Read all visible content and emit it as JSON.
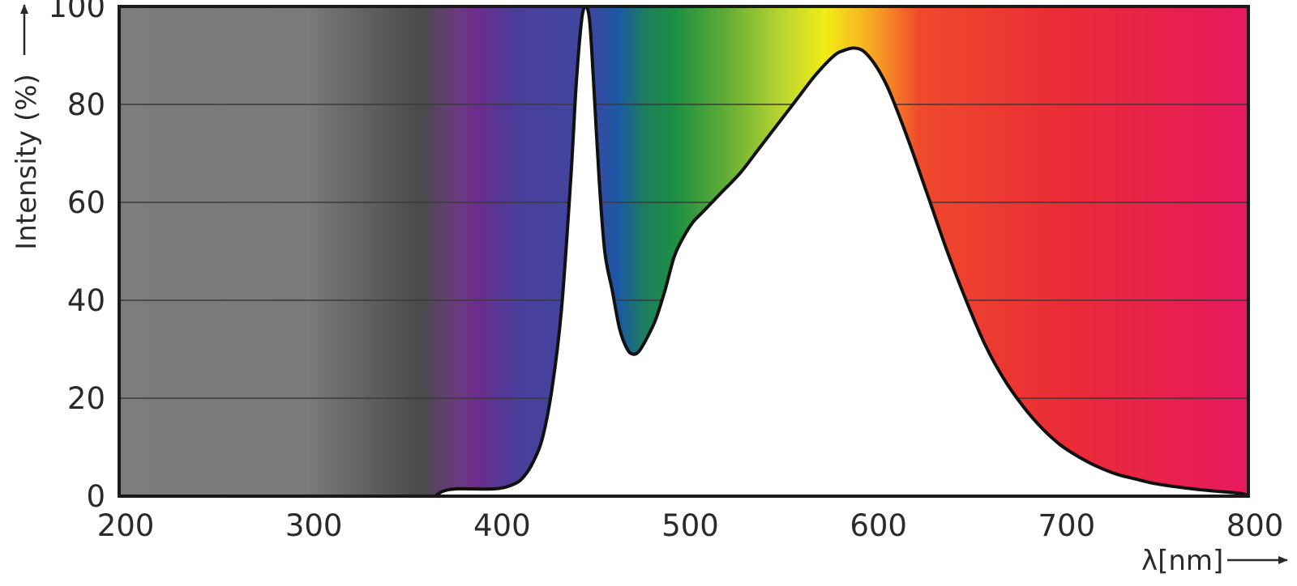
{
  "chart_data": {
    "type": "area",
    "title": "",
    "xlabel": "λ[nm]",
    "ylabel": "Intensity (%)",
    "xlim": [
      200,
      800
    ],
    "ylim": [
      0,
      100
    ],
    "grid": true,
    "x_ticks": [
      "200",
      "300",
      "400",
      "500",
      "600",
      "700",
      "800"
    ],
    "y_ticks": [
      "0",
      "20",
      "40",
      "60",
      "80",
      "100"
    ],
    "background": "visible spectrum gradient (grey UV region → violet → blue → green → yellow → orange → red)",
    "spectrum_colors": [
      {
        "nm": 200,
        "color": "#7d7d7d"
      },
      {
        "nm": 300,
        "color": "#7a7a7a"
      },
      {
        "nm": 360,
        "color": "#4a4a4a"
      },
      {
        "nm": 380,
        "color": "#6b3a80"
      },
      {
        "nm": 390,
        "color": "#6c2c8c"
      },
      {
        "nm": 410,
        "color": "#4a3e9a"
      },
      {
        "nm": 450,
        "color": "#3f47a0"
      },
      {
        "nm": 465,
        "color": "#1b58a6"
      },
      {
        "nm": 480,
        "color": "#1e7f5c"
      },
      {
        "nm": 495,
        "color": "#1c8f45"
      },
      {
        "nm": 520,
        "color": "#5aaa36"
      },
      {
        "nm": 550,
        "color": "#b3d232"
      },
      {
        "nm": 575,
        "color": "#f1ec16"
      },
      {
        "nm": 600,
        "color": "#f7a824"
      },
      {
        "nm": 625,
        "color": "#ef4a2c"
      },
      {
        "nm": 700,
        "color": "#ea2c36"
      },
      {
        "nm": 800,
        "color": "#e6195e"
      }
    ],
    "series": [
      {
        "x": [
          368,
          372,
          380,
          400,
          410,
          415,
          420,
          425,
          430,
          435,
          440,
          443,
          446,
          448,
          450,
          452,
          455,
          458,
          462,
          466,
          470,
          473,
          476,
          480,
          485,
          490,
          495,
          500,
          505,
          510,
          520,
          530,
          540,
          550,
          560,
          570,
          580,
          585,
          590,
          595,
          600,
          605,
          610,
          620,
          630,
          640,
          650,
          660,
          670,
          680,
          690,
          700,
          710,
          720,
          730,
          740,
          750,
          760,
          770,
          780,
          790,
          797,
          800
        ],
        "y": [
          0,
          1,
          1.5,
          1.5,
          2.5,
          4,
          7,
          12,
          22,
          38,
          65,
          85,
          98,
          100,
          97,
          85,
          65,
          50,
          42,
          34,
          30,
          29,
          29.5,
          32,
          36,
          42,
          49,
          53,
          56,
          58,
          62,
          66,
          71,
          76,
          81,
          86,
          90,
          91,
          91.5,
          91,
          89,
          86,
          82,
          72,
          61,
          50,
          40,
          31,
          24,
          18.5,
          14,
          10.5,
          8,
          6,
          4.5,
          3.5,
          2.6,
          2,
          1.5,
          1.1,
          0.8,
          0.5,
          0
        ]
      }
    ]
  }
}
